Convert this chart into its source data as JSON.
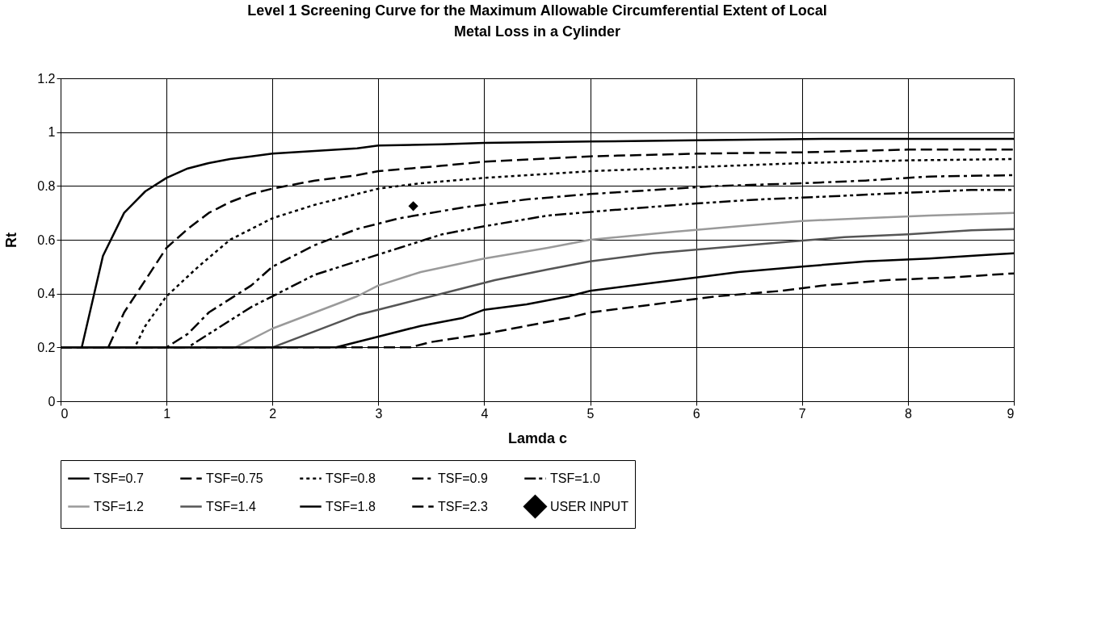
{
  "chart_data": {
    "type": "line",
    "title": "Level 1 Screening Curve for the Maximum Allowable Circumferential Extent of Local Metal Loss in a Cylinder",
    "xlabel": "Lamda c",
    "ylabel": "Rt",
    "xlim": [
      0,
      9
    ],
    "xticks": [
      0,
      1,
      2,
      3,
      4,
      5,
      6,
      7,
      8,
      9
    ],
    "ylim": [
      0,
      1.2
    ],
    "yticks": [
      0,
      0.2,
      0.4,
      0.6,
      0.8,
      1,
      1.2
    ],
    "grid": true,
    "legend": "bottom",
    "series": [
      {
        "name": "TSF=0.7",
        "color": "#000000",
        "line_style": "solid",
        "x": [
          0,
          0.2,
          0.4,
          0.6,
          0.8,
          1.0,
          1.2,
          1.4,
          1.6,
          1.8,
          2,
          2.4,
          2.8,
          3,
          3.6,
          4,
          5,
          6,
          7.2,
          9
        ],
        "values": [
          0.2,
          0.2,
          0.54,
          0.7,
          0.78,
          0.83,
          0.865,
          0.885,
          0.9,
          0.91,
          0.92,
          0.93,
          0.94,
          0.95,
          0.955,
          0.96,
          0.965,
          0.97,
          0.975,
          0.975
        ]
      },
      {
        "name": "TSF=0.75",
        "color": "#000000",
        "line_style": "dashed",
        "x": [
          0,
          0.45,
          0.6,
          0.8,
          1.0,
          1.2,
          1.4,
          1.6,
          1.8,
          2,
          2.4,
          2.8,
          3,
          3.6,
          4,
          5,
          6,
          7,
          8,
          9
        ],
        "values": [
          0.2,
          0.2,
          0.33,
          0.45,
          0.57,
          0.64,
          0.7,
          0.74,
          0.77,
          0.79,
          0.82,
          0.84,
          0.855,
          0.875,
          0.89,
          0.91,
          0.92,
          0.925,
          0.935,
          0.935
        ]
      },
      {
        "name": "TSF=0.8",
        "color": "#000000",
        "line_style": "dotted",
        "x": [
          0,
          0.7,
          0.8,
          1.0,
          1.3,
          1.6,
          2.0,
          2.4,
          2.8,
          3.0,
          3.4,
          4,
          5,
          6,
          7,
          8,
          9
        ],
        "values": [
          0.2,
          0.2,
          0.28,
          0.39,
          0.5,
          0.6,
          0.68,
          0.73,
          0.77,
          0.79,
          0.81,
          0.83,
          0.855,
          0.87,
          0.885,
          0.895,
          0.9
        ]
      },
      {
        "name": "TSF=0.9",
        "color": "#000000",
        "line_style": "dashdot",
        "x": [
          0,
          1.0,
          1.2,
          1.4,
          1.8,
          2.0,
          2.4,
          2.8,
          3.2,
          3.8,
          4.4,
          5,
          5.8,
          6.2,
          7,
          7.6,
          8.2,
          9
        ],
        "values": [
          0.2,
          0.2,
          0.25,
          0.33,
          0.43,
          0.5,
          0.58,
          0.64,
          0.68,
          0.72,
          0.75,
          0.77,
          0.79,
          0.8,
          0.81,
          0.82,
          0.835,
          0.84
        ]
      },
      {
        "name": "TSF=1.0",
        "color": "#000000",
        "line_style": "dashdotdot",
        "x": [
          0,
          1.2,
          1.4,
          1.8,
          2.1,
          2.4,
          2.8,
          3.2,
          3.6,
          4,
          4.6,
          5.2,
          6,
          6.6,
          7.2,
          8,
          8.6,
          9
        ],
        "values": [
          0.2,
          0.2,
          0.25,
          0.35,
          0.41,
          0.47,
          0.52,
          0.57,
          0.62,
          0.65,
          0.69,
          0.71,
          0.735,
          0.75,
          0.76,
          0.775,
          0.785,
          0.785
        ]
      },
      {
        "name": "TSF=1.2",
        "color": "#9a9a9a",
        "line_style": "solid",
        "x": [
          0,
          1.65,
          2.0,
          2.4,
          2.8,
          3.0,
          3.4,
          4,
          4.6,
          5,
          5.8,
          6.4,
          7,
          7.6,
          8.2,
          9
        ],
        "values": [
          0.2,
          0.2,
          0.27,
          0.33,
          0.39,
          0.43,
          0.48,
          0.53,
          0.57,
          0.6,
          0.63,
          0.65,
          0.67,
          0.68,
          0.69,
          0.7
        ]
      },
      {
        "name": "TSF=1.4",
        "color": "#555555",
        "line_style": "solid",
        "x": [
          0,
          2.0,
          2.4,
          2.8,
          3.2,
          3.6,
          4.1,
          4.6,
          5.0,
          5.6,
          6.2,
          6.8,
          7.4,
          8,
          8.6,
          9
        ],
        "values": [
          0.2,
          0.2,
          0.26,
          0.32,
          0.36,
          0.4,
          0.45,
          0.49,
          0.52,
          0.55,
          0.57,
          0.59,
          0.61,
          0.62,
          0.635,
          0.64
        ]
      },
      {
        "name": "TSF=1.8",
        "color": "#000000",
        "line_style": "solid",
        "x": [
          0,
          2.6,
          3.0,
          3.4,
          3.8,
          4.0,
          4.4,
          4.8,
          5.0,
          5.6,
          6.0,
          6.4,
          7.0,
          7.6,
          8.2,
          8.8,
          9
        ],
        "values": [
          0.2,
          0.2,
          0.24,
          0.28,
          0.31,
          0.34,
          0.36,
          0.39,
          0.41,
          0.44,
          0.46,
          0.48,
          0.5,
          0.52,
          0.53,
          0.545,
          0.55
        ]
      },
      {
        "name": "TSF=2.3",
        "color": "#000000",
        "line_style": "dashed",
        "x": [
          0,
          3.3,
          3.5,
          4.0,
          4.4,
          4.8,
          5.0,
          5.6,
          6.2,
          6.8,
          7.2,
          7.8,
          8.4,
          9
        ],
        "values": [
          0.2,
          0.2,
          0.22,
          0.25,
          0.28,
          0.31,
          0.33,
          0.36,
          0.39,
          0.41,
          0.43,
          0.45,
          0.46,
          0.475
        ]
      },
      {
        "name": "USER INPUT",
        "type": "scatter",
        "marker": "diamond",
        "color": "#000000",
        "x": [
          3.33
        ],
        "values": [
          0.725
        ]
      }
    ]
  }
}
